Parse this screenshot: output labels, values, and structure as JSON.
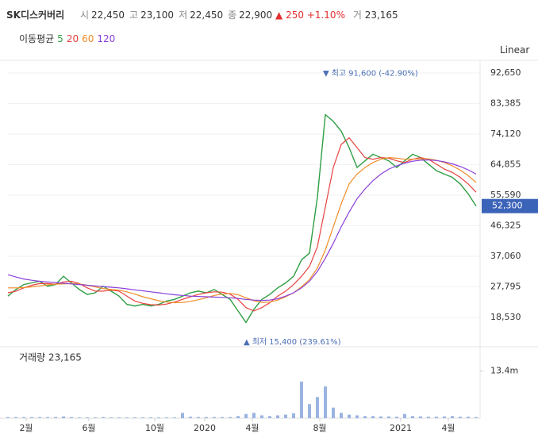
{
  "header": {
    "name": "SK디스커버리",
    "items": [
      {
        "label": "시",
        "value": "22,450"
      },
      {
        "label": "고",
        "value": "23,100"
      },
      {
        "label": "저",
        "value": "22,450"
      },
      {
        "label": "종",
        "value": "22,900"
      }
    ],
    "change_arrow": "▲",
    "change": "250",
    "change_pct": "+1.10%",
    "volume_label": "거",
    "volume": "23,165",
    "ma_title": "이동평균",
    "scale_mode": "Linear"
  },
  "chart_data": [
    {
      "type": "line",
      "ylim": [
        11330,
        96490
      ],
      "yticks": [
        {
          "value": 92650,
          "label": "92,650"
        },
        {
          "value": 83385,
          "label": "83,385"
        },
        {
          "value": 74120,
          "label": "74,120"
        },
        {
          "value": 64855,
          "label": "64,855"
        },
        {
          "value": 55590,
          "label": "55,590"
        },
        {
          "value": 46325,
          "label": "46,325"
        },
        {
          "value": 37060,
          "label": "37,060"
        },
        {
          "value": 27795,
          "label": "27,795"
        },
        {
          "value": 18530,
          "label": "18,530"
        }
      ],
      "xlim": [
        0,
        59
      ],
      "series": [
        {
          "name": "5",
          "color": "#2f9e44",
          "values": [
            25000,
            27000,
            28500,
            29000,
            29500,
            28000,
            28500,
            31000,
            29000,
            27000,
            25500,
            26000,
            28000,
            26500,
            25000,
            22500,
            22000,
            22500,
            22000,
            22500,
            23500,
            24000,
            25000,
            26000,
            26500,
            26000,
            27000,
            25500,
            24000,
            20500,
            17000,
            21000,
            24000,
            25500,
            27500,
            29000,
            31000,
            36000,
            38000,
            55000,
            80000,
            78000,
            75000,
            70000,
            64000,
            66000,
            68000,
            67000,
            66000,
            64000,
            66000,
            68000,
            67000,
            65000,
            63000,
            62000,
            61000,
            59000,
            56000,
            52300
          ]
        },
        {
          "name": "20",
          "color": "#e8423f",
          "values": [
            26000,
            26500,
            27500,
            28300,
            28800,
            28800,
            28600,
            29300,
            29500,
            28800,
            27500,
            26500,
            26500,
            26800,
            26500,
            25000,
            23500,
            22800,
            22400,
            22300,
            22600,
            23200,
            24000,
            24800,
            25500,
            26000,
            26300,
            26200,
            25600,
            24000,
            21500,
            20500,
            21500,
            23000,
            25000,
            26500,
            28500,
            31000,
            34000,
            40000,
            52000,
            64000,
            71000,
            73000,
            70000,
            67000,
            66500,
            67000,
            66800,
            66000,
            65500,
            66500,
            67000,
            66500,
            65000,
            63500,
            62500,
            61000,
            59000,
            56500
          ]
        },
        {
          "name": "60",
          "color": "#f08c28",
          "values": [
            27500,
            27500,
            27600,
            27800,
            28100,
            28400,
            28600,
            28700,
            28800,
            28700,
            28300,
            27800,
            27300,
            27000,
            26800,
            26300,
            25600,
            24800,
            24200,
            23600,
            23200,
            23000,
            23100,
            23400,
            23900,
            24500,
            25200,
            25600,
            25800,
            25400,
            24500,
            23600,
            23100,
            23200,
            23800,
            24800,
            26000,
            27800,
            30000,
            33500,
            39000,
            46000,
            53000,
            59000,
            62000,
            64000,
            65500,
            66500,
            67000,
            66800,
            66500,
            66500,
            66600,
            66600,
            66200,
            65500,
            64500,
            63200,
            61500,
            59500
          ]
        },
        {
          "name": "120",
          "color": "#8b3fd9",
          "values": [
            31500,
            30800,
            30200,
            29800,
            29500,
            29300,
            29100,
            28900,
            28700,
            28500,
            28300,
            28100,
            27900,
            27700,
            27500,
            27200,
            26900,
            26600,
            26300,
            26000,
            25700,
            25400,
            25200,
            25000,
            24900,
            24800,
            24700,
            24600,
            24500,
            24300,
            24000,
            23800,
            23700,
            23800,
            24200,
            25000,
            26000,
            27500,
            29500,
            32500,
            36500,
            41000,
            46000,
            50500,
            54500,
            57500,
            60000,
            62000,
            63500,
            64500,
            65300,
            65900,
            66200,
            66300,
            66100,
            65700,
            65100,
            64300,
            63300,
            62000
          ]
        }
      ],
      "current_price": 52300,
      "current_price_label": "52,300",
      "annotations": [
        {
          "marker": "▼",
          "text": "최고",
          "value_text": "91,600 (-42.90%)",
          "x": 40,
          "y": 91600
        },
        {
          "marker": "▲",
          "text": "최저",
          "value_text": "15,400 (239.61%)",
          "x": 30,
          "y": 15400
        }
      ]
    },
    {
      "type": "bar",
      "title": "거래량 23,165",
      "color": "#9bb4e0",
      "ylim": [
        0,
        19.6
      ],
      "yticks": [
        {
          "value": 13.4,
          "label": "13.4m"
        }
      ],
      "xlim": [
        0,
        59
      ],
      "xticks": [
        {
          "value": 2.3,
          "label": "2월"
        },
        {
          "value": 10.2,
          "label": "6월"
        },
        {
          "value": 18.5,
          "label": "10월"
        },
        {
          "value": 24.8,
          "label": "2020"
        },
        {
          "value": 30.8,
          "label": "4월"
        },
        {
          "value": 39.3,
          "label": "8월"
        },
        {
          "value": 49.5,
          "label": "2021"
        },
        {
          "value": 55.5,
          "label": "4월"
        }
      ],
      "values": [
        0.3,
        0.3,
        0.3,
        0.3,
        0.3,
        0.3,
        0.3,
        0.5,
        0.3,
        0.2,
        0.2,
        0.2,
        0.3,
        0.2,
        0.2,
        0.2,
        0.2,
        0.2,
        0.2,
        0.2,
        0.2,
        0.2,
        1.5,
        0.4,
        0.3,
        0.3,
        0.3,
        0.3,
        0.3,
        0.6,
        1.2,
        1.5,
        0.8,
        0.6,
        0.8,
        1.0,
        1.4,
        10.4,
        4.0,
        6.0,
        9.0,
        3.0,
        1.5,
        1.0,
        0.8,
        0.6,
        0.6,
        0.5,
        0.5,
        0.4,
        1.2,
        0.6,
        0.5,
        0.4,
        0.4,
        0.5,
        0.6,
        0.4,
        0.4,
        0.3
      ]
    }
  ]
}
